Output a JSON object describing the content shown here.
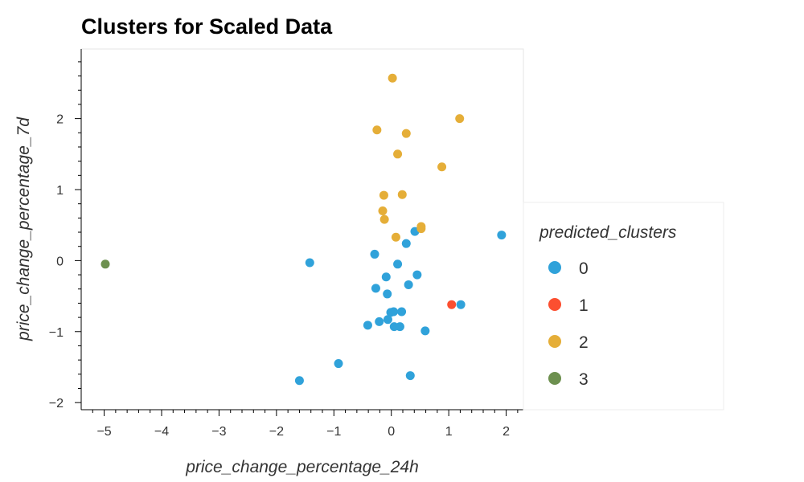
{
  "chart_data": {
    "type": "scatter",
    "title": "Clusters for Scaled Data",
    "xlabel": "price_change_percentage_24h",
    "ylabel": "price_change_percentage_7d",
    "xlim": [
      -5.4,
      2.3
    ],
    "ylim": [
      -2.1,
      2.98
    ],
    "xticks": [
      -5,
      -4,
      -3,
      -2,
      -1,
      0,
      1,
      2
    ],
    "yticks": [
      -2,
      -1,
      0,
      1,
      2
    ],
    "tick_labels_x": [
      "−5",
      "−4",
      "−3",
      "−2",
      "−1",
      "0",
      "1",
      "2"
    ],
    "tick_labels_y": [
      "−2",
      "−1",
      "0",
      "1",
      "2"
    ],
    "grid": false,
    "legend": {
      "title": "predicted_clusters",
      "placement": "right",
      "entries": [
        "0",
        "1",
        "2",
        "3"
      ]
    },
    "series": [
      {
        "name": "0",
        "color": "#30a2da",
        "points": [
          [
            -1.6,
            -1.69
          ],
          [
            -1.42,
            -0.03
          ],
          [
            -0.92,
            -1.45
          ],
          [
            -0.41,
            -0.91
          ],
          [
            -0.29,
            0.09
          ],
          [
            -0.27,
            -0.39
          ],
          [
            -0.21,
            -0.86
          ],
          [
            -0.09,
            -0.23
          ],
          [
            -0.07,
            -0.47
          ],
          [
            -0.06,
            -0.83
          ],
          [
            -0.01,
            -0.73
          ],
          [
            0.04,
            -0.72
          ],
          [
            0.05,
            -0.93
          ],
          [
            0.11,
            -0.05
          ],
          [
            0.15,
            -0.93
          ],
          [
            0.18,
            -0.72
          ],
          [
            0.26,
            0.24
          ],
          [
            0.3,
            -0.34
          ],
          [
            0.33,
            -1.62
          ],
          [
            0.45,
            -0.2
          ],
          [
            0.41,
            0.41
          ],
          [
            0.59,
            -0.99
          ],
          [
            1.21,
            -0.62
          ],
          [
            1.92,
            0.36
          ]
        ]
      },
      {
        "name": "1",
        "color": "#fc4f30",
        "points": [
          [
            1.05,
            -0.62
          ]
        ]
      },
      {
        "name": "2",
        "color": "#e5ae38",
        "points": [
          [
            0.02,
            2.57
          ],
          [
            -0.25,
            1.84
          ],
          [
            0.26,
            1.79
          ],
          [
            1.19,
            2.0
          ],
          [
            0.11,
            1.5
          ],
          [
            0.88,
            1.32
          ],
          [
            -0.13,
            0.92
          ],
          [
            0.19,
            0.93
          ],
          [
            -0.15,
            0.7
          ],
          [
            -0.12,
            0.58
          ],
          [
            0.52,
            0.48
          ],
          [
            0.52,
            0.45
          ],
          [
            0.08,
            0.33
          ]
        ]
      },
      {
        "name": "3",
        "color": "#6d904f",
        "points": [
          [
            -4.98,
            -0.05
          ]
        ]
      }
    ]
  }
}
